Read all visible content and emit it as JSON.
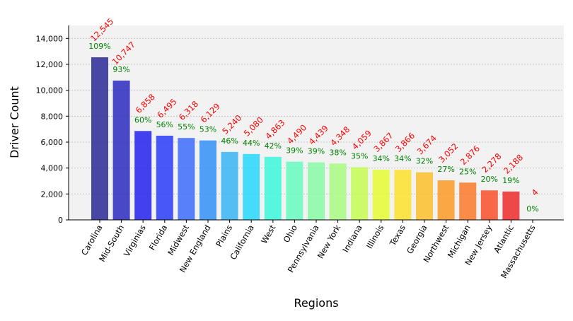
{
  "chart_data": {
    "type": "bar",
    "xlabel": "Regions",
    "ylabel": "Driver Count",
    "ylim": [
      0,
      15000
    ],
    "yticks": [
      0,
      2000,
      4000,
      6000,
      8000,
      10000,
      12000,
      14000
    ],
    "ytick_labels": [
      "0",
      "2,000",
      "4,000",
      "6,000",
      "8,000",
      "10,000",
      "12,000",
      "14,000"
    ],
    "grid": true,
    "categories": [
      "Carolina",
      "Mid-South",
      "Virginias",
      "Florida",
      "Midwest",
      "New England",
      "Plains",
      "California",
      "West",
      "Ohio",
      "Pennsylvania",
      "New York",
      "Indiana",
      "Illinois",
      "Texas",
      "Georgia",
      "Northwest",
      "Michigan",
      "New Jersey",
      "Atlantic",
      "Massachusetts"
    ],
    "values": [
      12545,
      10747,
      6858,
      6495,
      6318,
      6129,
      5240,
      5080,
      4863,
      4490,
      4439,
      4348,
      4059,
      3867,
      3866,
      3674,
      3052,
      2876,
      2278,
      2188,
      4
    ],
    "value_labels": [
      "12,545",
      "10,747",
      "6,858",
      "6,495",
      "6,318",
      "6,129",
      "5,240",
      "5,080",
      "4,863",
      "4,490",
      "4,439",
      "4,348",
      "4,059",
      "3,867",
      "3,866",
      "3,674",
      "3,052",
      "2,876",
      "2,278",
      "2,188",
      "4"
    ],
    "percent_labels": [
      "109%",
      "93%",
      "60%",
      "56%",
      "55%",
      "53%",
      "46%",
      "44%",
      "42%",
      "39%",
      "39%",
      "38%",
      "35%",
      "34%",
      "34%",
      "32%",
      "27%",
      "25%",
      "20%",
      "19%",
      "0%"
    ],
    "bar_colors": [
      "#2a2a96",
      "#2c2cc0",
      "#2222ee",
      "#2a3cf8",
      "#3c6cfa",
      "#3490f8",
      "#38b4f4",
      "#26d8fc",
      "#3cf8dc",
      "#66fcc0",
      "#88fca4",
      "#a8fc84",
      "#c4fc54",
      "#e4fc34",
      "#fce22c",
      "#fcc02a",
      "#fc9a26",
      "#fc7a2a",
      "#f8502a",
      "#ee2a2a",
      "#cc1a1a"
    ],
    "colors": {
      "value_label": "#ff0000",
      "percent_label": "#008000",
      "plot_bg": "#f2f2f2",
      "grid": "#bbbbbb"
    }
  }
}
